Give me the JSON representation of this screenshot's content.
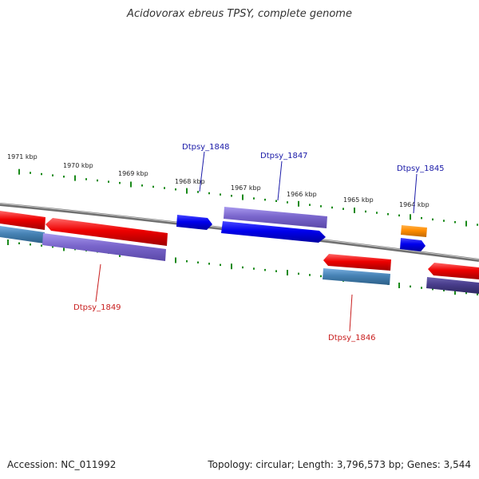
{
  "title": "Acidovorax ebreus TPSY, complete genome",
  "footer": {
    "accession": "Accession: NC_011992",
    "summary": "Topology: circular; Length: 3,796,573 bp; Genes: 3,544"
  },
  "ticks": [
    "1971 kbp",
    "1970 kbp",
    "1969 kbp",
    "1968 kbp",
    "1967 kbp",
    "1966 kbp",
    "1965 kbp",
    "1964 kbp"
  ],
  "labels": {
    "dtpsy_1848": "Dtpsy_1848",
    "dtpsy_1847": "Dtpsy_1847",
    "dtpsy_1845": "Dtpsy_1845",
    "dtpsy_1849": "Dtpsy_1849",
    "dtpsy_1846": "Dtpsy_1846"
  },
  "colors": {
    "forward_label": "#1a1aa8",
    "reverse_label": "#c81e1e",
    "cds_forward": "#0000ee",
    "cds_reverse": "#ee0000",
    "feature_purple": "#7a66cc",
    "feature_steel": "#4682b4",
    "feature_dark": "#483d8b",
    "feature_orange": "#ff8c00",
    "tick_green": "#1a8a1a",
    "backbone": "#888888"
  }
}
